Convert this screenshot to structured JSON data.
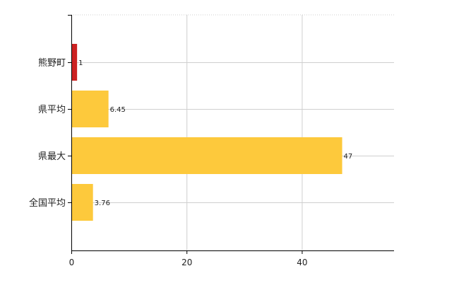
{
  "chart_data": {
    "type": "bar",
    "orientation": "horizontal",
    "categories": [
      "熊野町",
      "県平均",
      "県最大",
      "全国平均"
    ],
    "values": [
      1,
      6.45,
      47,
      3.76
    ],
    "value_labels": [
      "1",
      "6.45",
      "47",
      "3.76"
    ],
    "bar_colors": [
      "#cc2222",
      "#fdc93c",
      "#fdc93c",
      "#fdc93c"
    ],
    "xlim": [
      0,
      56
    ],
    "x_ticks": [
      0,
      20,
      40
    ],
    "x_tick_labels": [
      "0",
      "20",
      "40"
    ],
    "grid": true,
    "legend": "none"
  }
}
